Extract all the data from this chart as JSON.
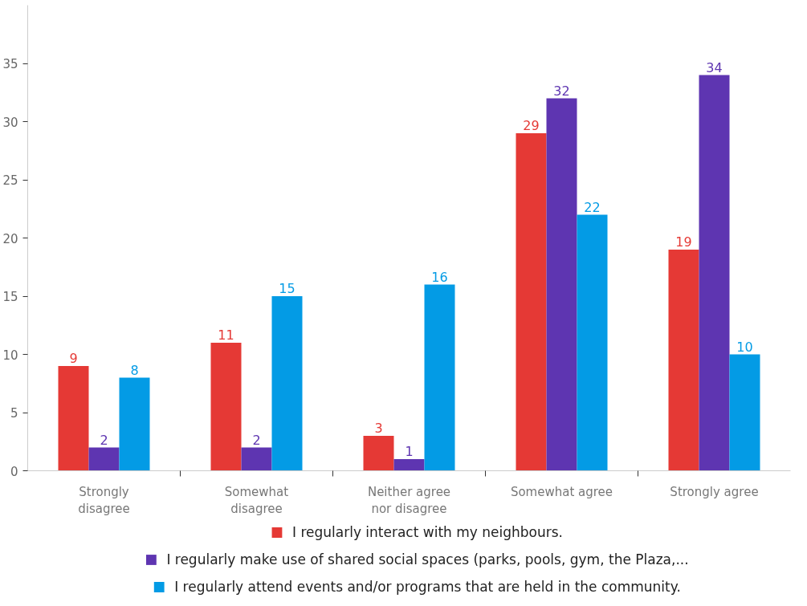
{
  "chart_data": {
    "type": "bar",
    "categories": [
      "Strongly disagree",
      "Somewhat disagree",
      "Neither agree nor disagree",
      "Somewhat agree",
      "Strongly agree"
    ],
    "series": [
      {
        "name": "I regularly interact with my neighbours.",
        "color": "#e53935",
        "values": [
          9,
          11,
          3,
          29,
          19
        ]
      },
      {
        "name": "I regularly make use of shared social spaces (parks, pools, gym, the Plaza,...",
        "color": "#5e35b1",
        "values": [
          2,
          2,
          1,
          32,
          34
        ]
      },
      {
        "name": "I regularly attend events and/or programs that are held in the community.",
        "color": "#039be5",
        "values": [
          8,
          15,
          16,
          22,
          10
        ]
      }
    ],
    "ylim": [
      0,
      40
    ],
    "yticks": [
      0,
      5,
      10,
      15,
      20,
      25,
      30,
      35
    ],
    "grid": false,
    "legend": "bottom",
    "data_labels": true
  }
}
